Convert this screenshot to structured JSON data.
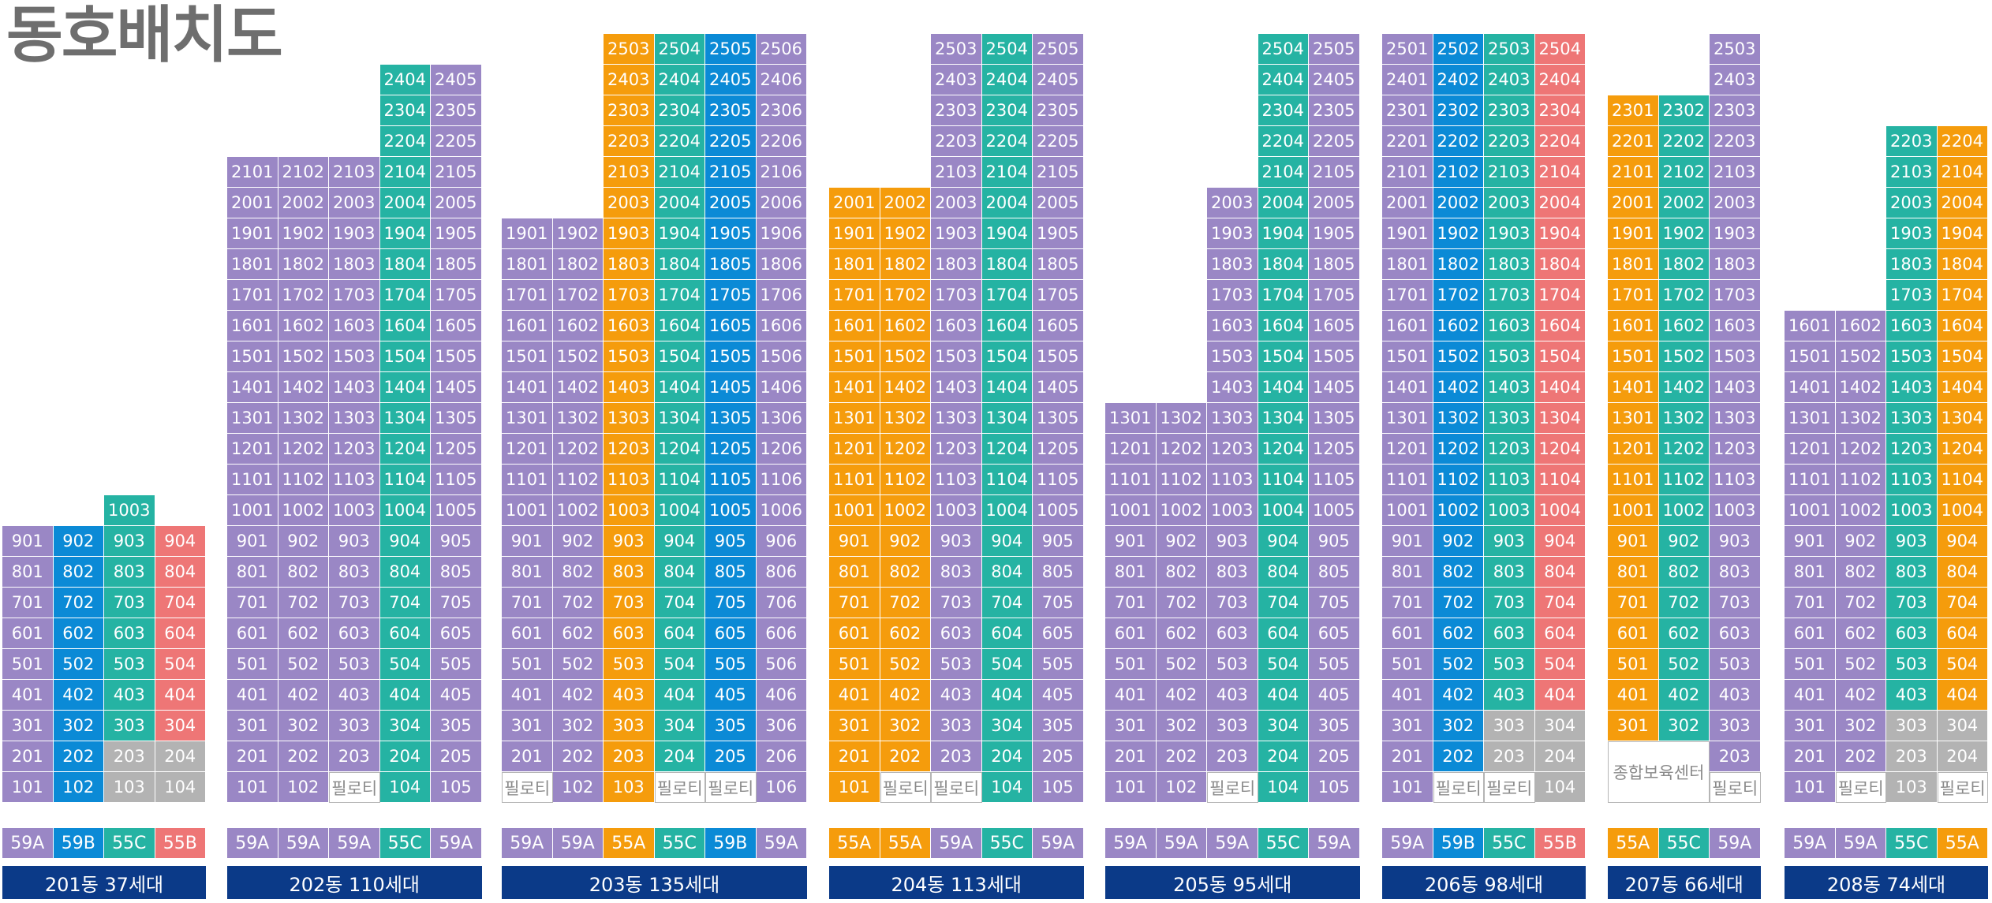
{
  "title": "동호배치도",
  "colors": {
    "59A": "#9a87c5",
    "59B": "#0b8ad6",
    "55C": "#25b3a3",
    "55B": "#ee7676",
    "55A": "#f59c0c",
    "gray": "#b3b3b3",
    "white": "#ffffff",
    "label": "#0b3a88"
  },
  "pilotis": "필로티",
  "daycare": "종합보육센터",
  "buildings": [
    {
      "name": "201동 37세대",
      "floors": 10,
      "units": [
        {
          "num": 1,
          "type": "59A",
          "top": 9
        },
        {
          "num": 2,
          "type": "59B",
          "top": 9
        },
        {
          "num": 3,
          "type": "55C",
          "top": 10
        },
        {
          "num": 4,
          "type": "55B",
          "top": 9
        }
      ],
      "footer": [
        "59A",
        "59B",
        "55C",
        "55B"
      ],
      "overrides": {
        "1-3": "gray",
        "1-4": "gray",
        "2-3": "gray",
        "2-4": "gray"
      }
    },
    {
      "name": "202동 110세대",
      "floors": 24,
      "units": [
        {
          "num": 1,
          "type": "59A",
          "top": 21
        },
        {
          "num": 2,
          "type": "59A",
          "top": 21
        },
        {
          "num": 3,
          "type": "59A",
          "top": 21
        },
        {
          "num": 4,
          "type": "55C",
          "top": 24
        },
        {
          "num": 5,
          "type": "59A",
          "top": 24
        }
      ],
      "footer": [
        "59A",
        "59A",
        "59A",
        "55C",
        "59A"
      ],
      "overrides": {
        "1-3": "pilotis"
      }
    },
    {
      "name": "203동 135세대",
      "floors": 25,
      "units": [
        {
          "num": 1,
          "type": "59A",
          "top": 19
        },
        {
          "num": 2,
          "type": "59A",
          "top": 19
        },
        {
          "num": 3,
          "type": "55A",
          "top": 25
        },
        {
          "num": 4,
          "type": "55C",
          "top": 25
        },
        {
          "num": 5,
          "type": "59B",
          "top": 25
        },
        {
          "num": 6,
          "type": "59A",
          "top": 25
        }
      ],
      "footer": [
        "59A",
        "59A",
        "55A",
        "55C",
        "59B",
        "59A"
      ],
      "overrides": {
        "1-1": "pilotis",
        "1-4": "pilotis",
        "1-5": "pilotis"
      }
    },
    {
      "name": "204동 113세대",
      "floors": 25,
      "units": [
        {
          "num": 1,
          "type": "55A",
          "top": 20
        },
        {
          "num": 2,
          "type": "55A",
          "top": 20
        },
        {
          "num": 3,
          "type": "59A",
          "top": 25
        },
        {
          "num": 4,
          "type": "55C",
          "top": 25
        },
        {
          "num": 5,
          "type": "59A",
          "top": 25
        }
      ],
      "footer": [
        "55A",
        "55A",
        "59A",
        "55C",
        "59A"
      ],
      "overrides": {
        "1-2": "pilotis",
        "1-3": "pilotis"
      }
    },
    {
      "name": "205동 95세대",
      "floors": 25,
      "units": [
        {
          "num": 1,
          "type": "59A",
          "top": 13
        },
        {
          "num": 2,
          "type": "59A",
          "top": 13
        },
        {
          "num": 3,
          "type": "59A",
          "top": 20
        },
        {
          "num": 4,
          "type": "55C",
          "top": 25
        },
        {
          "num": 5,
          "type": "59A",
          "top": 25
        }
      ],
      "footer": [
        "59A",
        "59A",
        "59A",
        "55C",
        "59A"
      ],
      "overrides": {
        "1-3": "pilotis"
      }
    },
    {
      "name": "206동 98세대",
      "floors": 25,
      "units": [
        {
          "num": 1,
          "type": "59A",
          "top": 25
        },
        {
          "num": 2,
          "type": "59B",
          "top": 25
        },
        {
          "num": 3,
          "type": "55C",
          "top": 25
        },
        {
          "num": 4,
          "type": "55B",
          "top": 25
        }
      ],
      "footer": [
        "59A",
        "59B",
        "55C",
        "55B"
      ],
      "overrides": {
        "1-2": "pilotis",
        "1-3": "pilotis",
        "1-4": "gray",
        "2-3": "gray",
        "2-4": "gray",
        "3-3": "gray",
        "3-4": "gray"
      }
    },
    {
      "name": "207동 66세대",
      "floors": 25,
      "units": [
        {
          "num": 1,
          "type": "55A",
          "top": 23
        },
        {
          "num": 2,
          "type": "55C",
          "top": 23
        },
        {
          "num": 3,
          "type": "59A",
          "top": 25
        }
      ],
      "footer": [
        "55A",
        "55C",
        "59A"
      ],
      "overrides": {
        "1-3": "pilotis"
      },
      "daycare_floors": 2
    },
    {
      "name": "208동 74세대",
      "floors": 22,
      "units": [
        {
          "num": 1,
          "type": "59A",
          "top": 16
        },
        {
          "num": 2,
          "type": "59A",
          "top": 16
        },
        {
          "num": 3,
          "type": "55C",
          "top": 22
        },
        {
          "num": 4,
          "type": "55A",
          "top": 22
        }
      ],
      "footer": [
        "59A",
        "59A",
        "55C",
        "55A"
      ],
      "overrides": {
        "1-2": "pilotis",
        "1-3": "gray",
        "1-4": "pilotis",
        "2-3": "gray",
        "2-4": "gray",
        "3-3": "gray",
        "3-4": "gray"
      }
    }
  ]
}
